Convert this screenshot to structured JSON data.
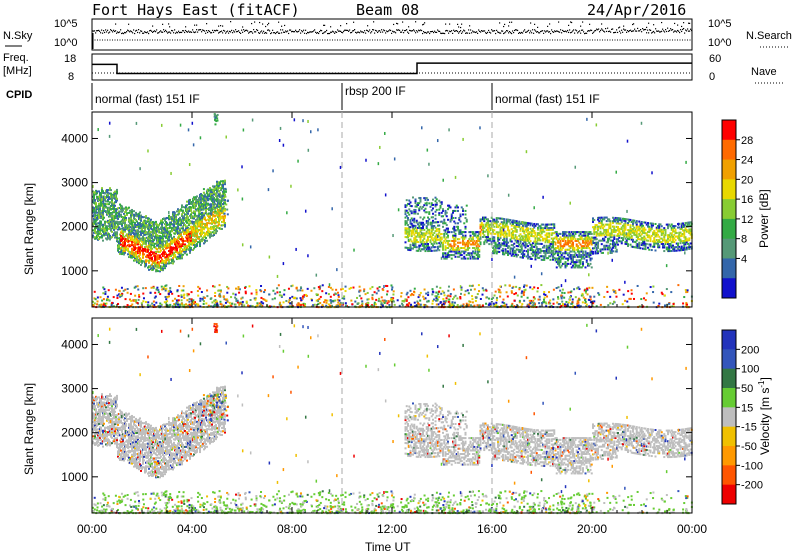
{
  "header": {
    "station": "Fort Hays East (fitACF)",
    "beam": "Beam 08",
    "date": "24/Apr/2016"
  },
  "top_panels": {
    "nsky_label": "N.Sky",
    "nsky_ticks": [
      "10^5",
      "10^0"
    ],
    "nsearch_label": "N.Search",
    "nsearch_ticks": [
      "10^5",
      "10^0"
    ],
    "freq_label": "Freq.",
    "freq_unit": "[MHz]",
    "freq_ticks": [
      "18",
      "8"
    ],
    "nave_label": "Nave",
    "nave_ticks": [
      "60",
      "0"
    ],
    "cpid_label": "CPID",
    "cpid_segments": [
      {
        "label": "normal (fast) 151 IF",
        "start_h": 0,
        "end_h": 10
      },
      {
        "label": "rbsp 200 IF",
        "start_h": 10,
        "end_h": 16
      },
      {
        "label": "normal (fast) 151 IF",
        "start_h": 16,
        "end_h": 24
      }
    ],
    "freq_steps": [
      {
        "start_h": 0,
        "end_h": 1,
        "mhz": 14
      },
      {
        "start_h": 1,
        "end_h": 13,
        "mhz": 10.5
      },
      {
        "start_h": 13,
        "end_h": 24,
        "mhz": 14.5
      }
    ]
  },
  "chart_data": [
    {
      "type": "heatmap",
      "title": "",
      "parameter": "Power",
      "xlabel": "",
      "ylabel": "Slant Range [km]",
      "colorbar_label": "Power [dB]",
      "colorbar_ticks": [
        "28",
        "24",
        "20",
        "16",
        "12",
        "8",
        "4"
      ],
      "colorbar_colors": [
        "#ff0000",
        "#ff6a00",
        "#f0a000",
        "#e8d800",
        "#88cc33",
        "#33aa44",
        "#559977",
        "#3366aa",
        "#1111cc"
      ],
      "yticks": [
        "4000",
        "3000",
        "2000",
        "1000"
      ],
      "ylim": [
        180,
        4600
      ],
      "xlim_hours": [
        0,
        24
      ],
      "regions": [
        {
          "name": "early-echo-band",
          "start_h": 0,
          "end_h": 5.3,
          "range_min_km": 1100,
          "range_max_km": 2600
        },
        {
          "name": "late-echo-band",
          "start_h": 12.5,
          "end_h": 24,
          "range_min_km": 1300,
          "range_max_km": 2300
        },
        {
          "name": "ground-scatter-near-range",
          "start_h": 0,
          "end_h": 24,
          "range_min_km": 180,
          "range_max_km": 600
        }
      ]
    },
    {
      "type": "heatmap",
      "title": "",
      "parameter": "Velocity",
      "xlabel": "Time UT",
      "ylabel": "Slant Range [km]",
      "colorbar_label": "Velocity [m s^-1]",
      "colorbar_ticks": [
        "200",
        "100",
        "50",
        "15",
        "-15",
        "-50",
        "-100",
        "-200"
      ],
      "colorbar_colors": [
        "#2233bb",
        "#3355bb",
        "#337744",
        "#66cc33",
        "#bebebe",
        "#f0c000",
        "#ff9900",
        "#ff5500",
        "#ee0000"
      ],
      "xticks": [
        "00:00",
        "04:00",
        "08:00",
        "12:00",
        "16:00",
        "20:00",
        "00:00"
      ],
      "yticks": [
        "4000",
        "3000",
        "2000",
        "1000"
      ],
      "ylim": [
        180,
        4600
      ],
      "xlim_hours": [
        0,
        24
      ]
    }
  ]
}
